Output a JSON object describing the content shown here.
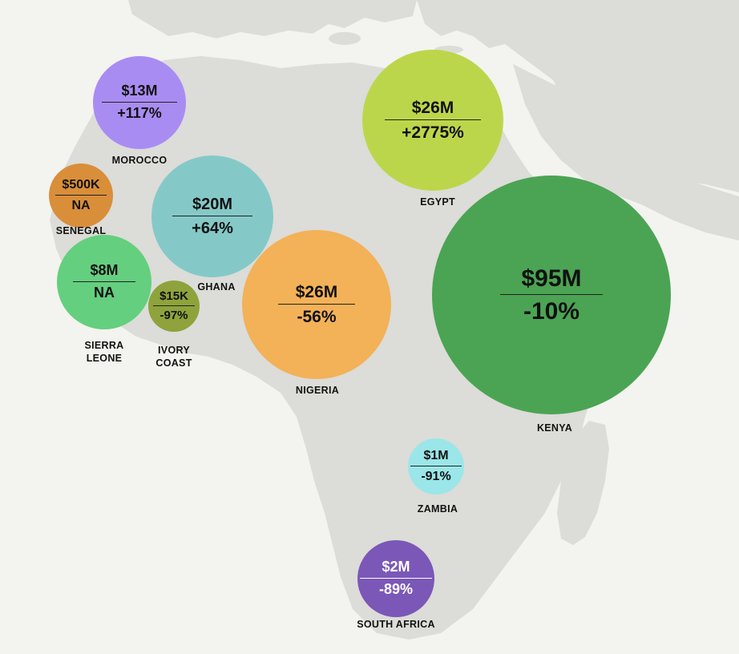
{
  "colors": {
    "background": "#f3f3ef",
    "land": "#dcdcd8"
  },
  "countries": [
    {
      "id": "morocco",
      "name": "MOROCCO",
      "amount": "$13M",
      "change": "+117%",
      "color": "#a98cf2"
    },
    {
      "id": "senegal",
      "name": "SENEGAL",
      "amount": "$500K",
      "change": "NA",
      "color": "#d98e3a"
    },
    {
      "id": "sierra-leone",
      "name": "SIERRA\nLEONE",
      "amount": "$8M",
      "change": "NA",
      "color": "#64cf7f"
    },
    {
      "id": "ghana",
      "name": "GHANA",
      "amount": "$20M",
      "change": "+64%",
      "color": "#84c9c8"
    },
    {
      "id": "ivory-coast",
      "name": "IVORY\nCOAST",
      "amount": "$15K",
      "change": "-97%",
      "color": "#8ea33b"
    },
    {
      "id": "nigeria",
      "name": "NIGERIA",
      "amount": "$26M",
      "change": "-56%",
      "color": "#f3b158"
    },
    {
      "id": "egypt",
      "name": "EGYPT",
      "amount": "$26M",
      "change": "+2775%",
      "color": "#bcd64b"
    },
    {
      "id": "kenya",
      "name": "KENYA",
      "amount": "$95M",
      "change": "-10%",
      "color": "#4ba453"
    },
    {
      "id": "zambia",
      "name": "ZAMBIA",
      "amount": "$1M",
      "change": "-91%",
      "color": "#9be6e8"
    },
    {
      "id": "south-africa",
      "name": "SOUTH AFRICA",
      "amount": "$2M",
      "change": "-89%",
      "color": "#7b57b8"
    }
  ]
}
